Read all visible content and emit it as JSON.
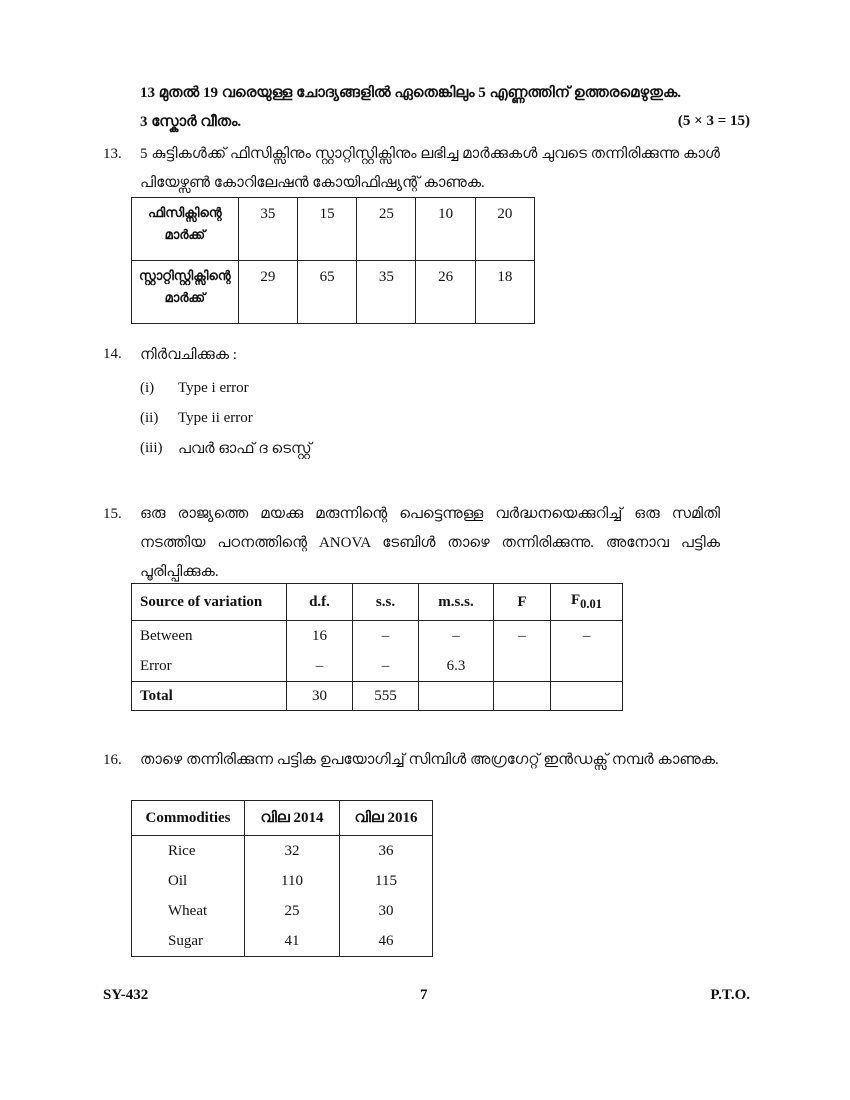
{
  "instructions": {
    "line1": "13 മുതൽ 19 വരെയുള്ള ചോദ്യങ്ങളിൽ ഏതെങ്കിലും 5 എണ്ണത്തിന് ഉത്തരമെഴുതുക.",
    "line2": "3 സ്കോർ വീതം.",
    "marks": "(5 × 3 = 15)"
  },
  "q13": {
    "num": "13.",
    "text": "5 കുട്ടികൾക്ക് ഫിസിക്സിനും സ്റ്റാറ്റിസ്റ്റിക്സിനും ലഭിച്ച മാർക്കുകൾ ചുവടെ തന്നിരിക്കുന്നു കാൾ പിയേഴ്സൺ കോറിലേഷൻ കോയിഫിഷ്യന്റ് കാണുക.",
    "rows": [
      {
        "label": "ഫിസിക്സിന്റെ മാർക്ക്",
        "values": [
          "35",
          "15",
          "25",
          "10",
          "20"
        ]
      },
      {
        "label": "സ്റ്റാറ്റിസ്റ്റിക്സിന്റെ മാർക്ക്",
        "values": [
          "29",
          "65",
          "35",
          "26",
          "18"
        ]
      }
    ]
  },
  "q14": {
    "num": "14.",
    "text": "നിർവചിക്കുക :",
    "items": [
      {
        "n": "(i)",
        "t": "Type i error"
      },
      {
        "n": "(ii)",
        "t": "Type ii error"
      },
      {
        "n": "(iii)",
        "t": "പവർ ഓഫ് ദ ടെസ്റ്റ്"
      }
    ]
  },
  "q15": {
    "num": "15.",
    "text": "ഒരു രാജ്യത്തെ മയക്കു മരുന്നിന്റെ പെട്ടെന്നുള്ള വർദ്ധനയെക്കുറിച്ച് ഒരു സമിതി നടത്തിയ പഠനത്തിന്റെ ANOVA ടേബിൾ താഴെ തന്നിരിക്കുന്നു. അനോവ പട്ടിക പൂരിപ്പിക്കുക.",
    "headers": [
      "Source of variation",
      "d.f.",
      "s.s.",
      "m.s.s.",
      "F"
    ],
    "f_header": "F",
    "f_sub": "0.01",
    "rows": [
      [
        "Between",
        "16",
        "–",
        "–",
        "–",
        "–"
      ],
      [
        "Error",
        "–",
        "–",
        "6.3",
        "",
        ""
      ]
    ],
    "total": [
      "Total",
      "30",
      "555",
      "",
      "",
      ""
    ]
  },
  "q16": {
    "num": "16.",
    "text": "താഴെ തന്നിരിക്കുന്ന പട്ടിക ഉപയോഗിച്ച് സിമ്പിൾ അഗ്രഗേറ്റ് ഇൻഡക്സ് നമ്പർ കാണുക.",
    "headers": [
      "Commodities",
      "വില 2014",
      "വില 2016"
    ],
    "rows": [
      [
        "Rice",
        "32",
        "36"
      ],
      [
        "Oil",
        "110",
        "115"
      ],
      [
        "Wheat",
        "25",
        "30"
      ],
      [
        "Sugar",
        "41",
        "46"
      ]
    ]
  },
  "footer": {
    "code": "SY-432",
    "page": "7",
    "pto": "P.T.O."
  }
}
